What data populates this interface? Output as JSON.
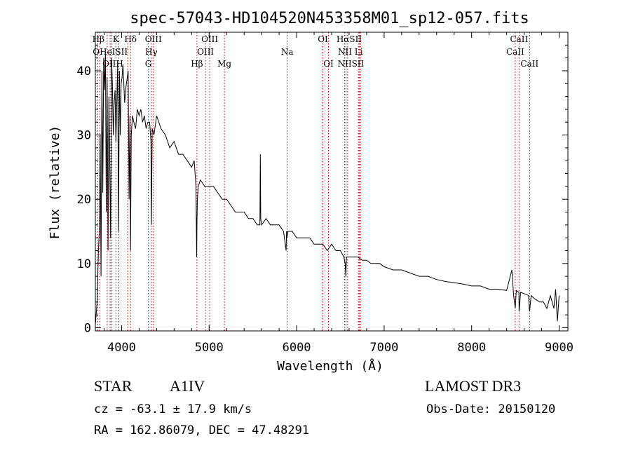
{
  "chart_data": {
    "type": "line",
    "title": "spec-57043-HD104520N453358M01_sp12-057.fits",
    "xlabel": "Wavelength (Å)",
    "ylabel": "Flux (relative)",
    "xlim": [
      3700,
      9100
    ],
    "ylim": [
      -0.5,
      46
    ],
    "xticks": [
      4000,
      5000,
      6000,
      7000,
      8000,
      9000
    ],
    "yticks": [
      0,
      10,
      20,
      30,
      40
    ],
    "series": [
      {
        "name": "flux",
        "x": [
          3700,
          3720,
          3735,
          3745,
          3755,
          3765,
          3775,
          3785,
          3795,
          3805,
          3815,
          3825,
          3835,
          3845,
          3855,
          3865,
          3875,
          3885,
          3895,
          3905,
          3915,
          3925,
          3935,
          3945,
          3955,
          3965,
          3975,
          3985,
          3995,
          4005,
          4015,
          4025,
          4035,
          4045,
          4055,
          4065,
          4075,
          4085,
          4095,
          4102,
          4110,
          4125,
          4140,
          4160,
          4180,
          4200,
          4220,
          4240,
          4260,
          4280,
          4300,
          4320,
          4335,
          4341,
          4350,
          4370,
          4400,
          4450,
          4500,
          4550,
          4600,
          4650,
          4700,
          4750,
          4800,
          4830,
          4850,
          4858,
          4861,
          4866,
          4875,
          4900,
          4950,
          5000,
          5050,
          5100,
          5150,
          5200,
          5250,
          5300,
          5350,
          5400,
          5450,
          5500,
          5550,
          5580,
          5585,
          5590,
          5600,
          5650,
          5700,
          5750,
          5800,
          5850,
          5880,
          5885,
          5890,
          5900,
          5950,
          6000,
          6050,
          6100,
          6150,
          6200,
          6250,
          6300,
          6350,
          6400,
          6450,
          6500,
          6540,
          6555,
          6563,
          6570,
          6590,
          6650,
          6700,
          6750,
          6800,
          6850,
          6900,
          6950,
          7000,
          7100,
          7200,
          7300,
          7400,
          7500,
          7600,
          7700,
          7800,
          7900,
          8000,
          8100,
          8200,
          8300,
          8400,
          8460,
          8480,
          8498,
          8510,
          8540,
          8542,
          8560,
          8620,
          8650,
          8662,
          8680,
          8720,
          8780,
          8820,
          8860,
          8900,
          8940,
          8960,
          8980,
          9000
        ],
        "values": [
          0.5,
          4,
          12,
          15,
          30,
          8,
          40,
          21,
          42,
          37,
          43,
          18,
          39,
          12,
          36,
          25,
          14,
          42,
          38,
          30,
          35,
          37,
          29,
          35,
          41,
          15,
          40,
          30,
          38,
          39,
          41,
          38,
          35,
          37,
          38,
          39,
          40,
          20,
          33,
          12,
          30,
          33,
          32,
          31,
          34,
          33,
          34,
          32,
          33,
          31,
          32,
          32,
          29,
          16,
          31,
          30,
          33,
          31,
          30,
          28,
          29,
          27,
          27,
          26,
          25,
          26,
          22,
          11,
          16,
          20,
          22,
          23,
          22,
          22,
          22,
          21,
          20,
          20,
          19,
          18,
          18,
          18,
          17,
          17,
          16,
          16,
          27,
          17,
          16,
          17,
          16,
          16,
          16,
          15,
          12,
          15,
          14,
          15,
          15,
          14,
          14,
          14,
          14,
          13,
          13,
          13,
          12,
          13,
          12,
          12,
          11,
          10,
          8,
          11,
          11,
          11,
          11,
          10.5,
          10.5,
          10,
          10,
          10,
          9.5,
          9,
          9,
          8.5,
          8,
          8,
          7.5,
          7.2,
          7,
          6.8,
          6.5,
          6.5,
          6,
          6,
          5.8,
          9,
          5,
          3,
          5.8,
          5.5,
          2.5,
          5.5,
          5.2,
          5,
          2.5,
          5,
          4.5,
          4,
          4,
          3,
          5,
          3,
          6,
          1,
          5
        ]
      }
    ],
    "spectral_lines": [
      {
        "label": "Hβ",
        "x": 3735,
        "row": 1
      },
      {
        "label": "K",
        "x": 3934,
        "row": 1
      },
      {
        "label": "Hδ",
        "x": 4102,
        "row": 1
      },
      {
        "label": "OIII",
        "x": 4363,
        "row": 1
      },
      {
        "label": "OIII",
        "x": 5007,
        "row": 1
      },
      {
        "label": "OI",
        "x": 6300,
        "row": 1
      },
      {
        "label": "HαSII",
        "x": 6600,
        "row": 1
      },
      {
        "label": "CaII",
        "x": 8542,
        "row": 1
      },
      {
        "label": "OHeISII",
        "x": 3870,
        "row": 2
      },
      {
        "label": "Hγ",
        "x": 4340,
        "row": 2
      },
      {
        "label": "OIII",
        "x": 4959,
        "row": 2
      },
      {
        "label": "Na",
        "x": 5893,
        "row": 2
      },
      {
        "label": "NII Li",
        "x": 6615,
        "row": 2
      },
      {
        "label": "CaII",
        "x": 8498,
        "row": 2
      },
      {
        "label": "OIIH",
        "x": 3900,
        "row": 3
      },
      {
        "label": "G",
        "x": 4305,
        "row": 3
      },
      {
        "label": "Hβ",
        "x": 4861,
        "row": 3
      },
      {
        "label": "Mg",
        "x": 5175,
        "row": 3
      },
      {
        "label": "OI",
        "x": 6364,
        "row": 3
      },
      {
        "label": "NIISII",
        "x": 6620,
        "row": 3
      },
      {
        "label": "CaII",
        "x": 8662,
        "row": 3
      }
    ],
    "line_markers_x": [
      3727,
      3750,
      3835,
      3869,
      3889,
      3934,
      3968,
      4070,
      4102,
      4305,
      4340,
      4363,
      4861,
      4959,
      5007,
      5175,
      5893,
      6300,
      6364,
      6548,
      6563,
      6583,
      6707,
      6716,
      6731,
      8498,
      8542,
      8662
    ]
  },
  "info": {
    "object_type": "STAR",
    "subclass": "A1IV",
    "survey": "LAMOST DR3",
    "cz": "cz = -63.1 ± 17.9 km/s",
    "obs_date": "Obs-Date: 20150120",
    "coords": "RA = 162.86079, DEC =  47.48291"
  }
}
